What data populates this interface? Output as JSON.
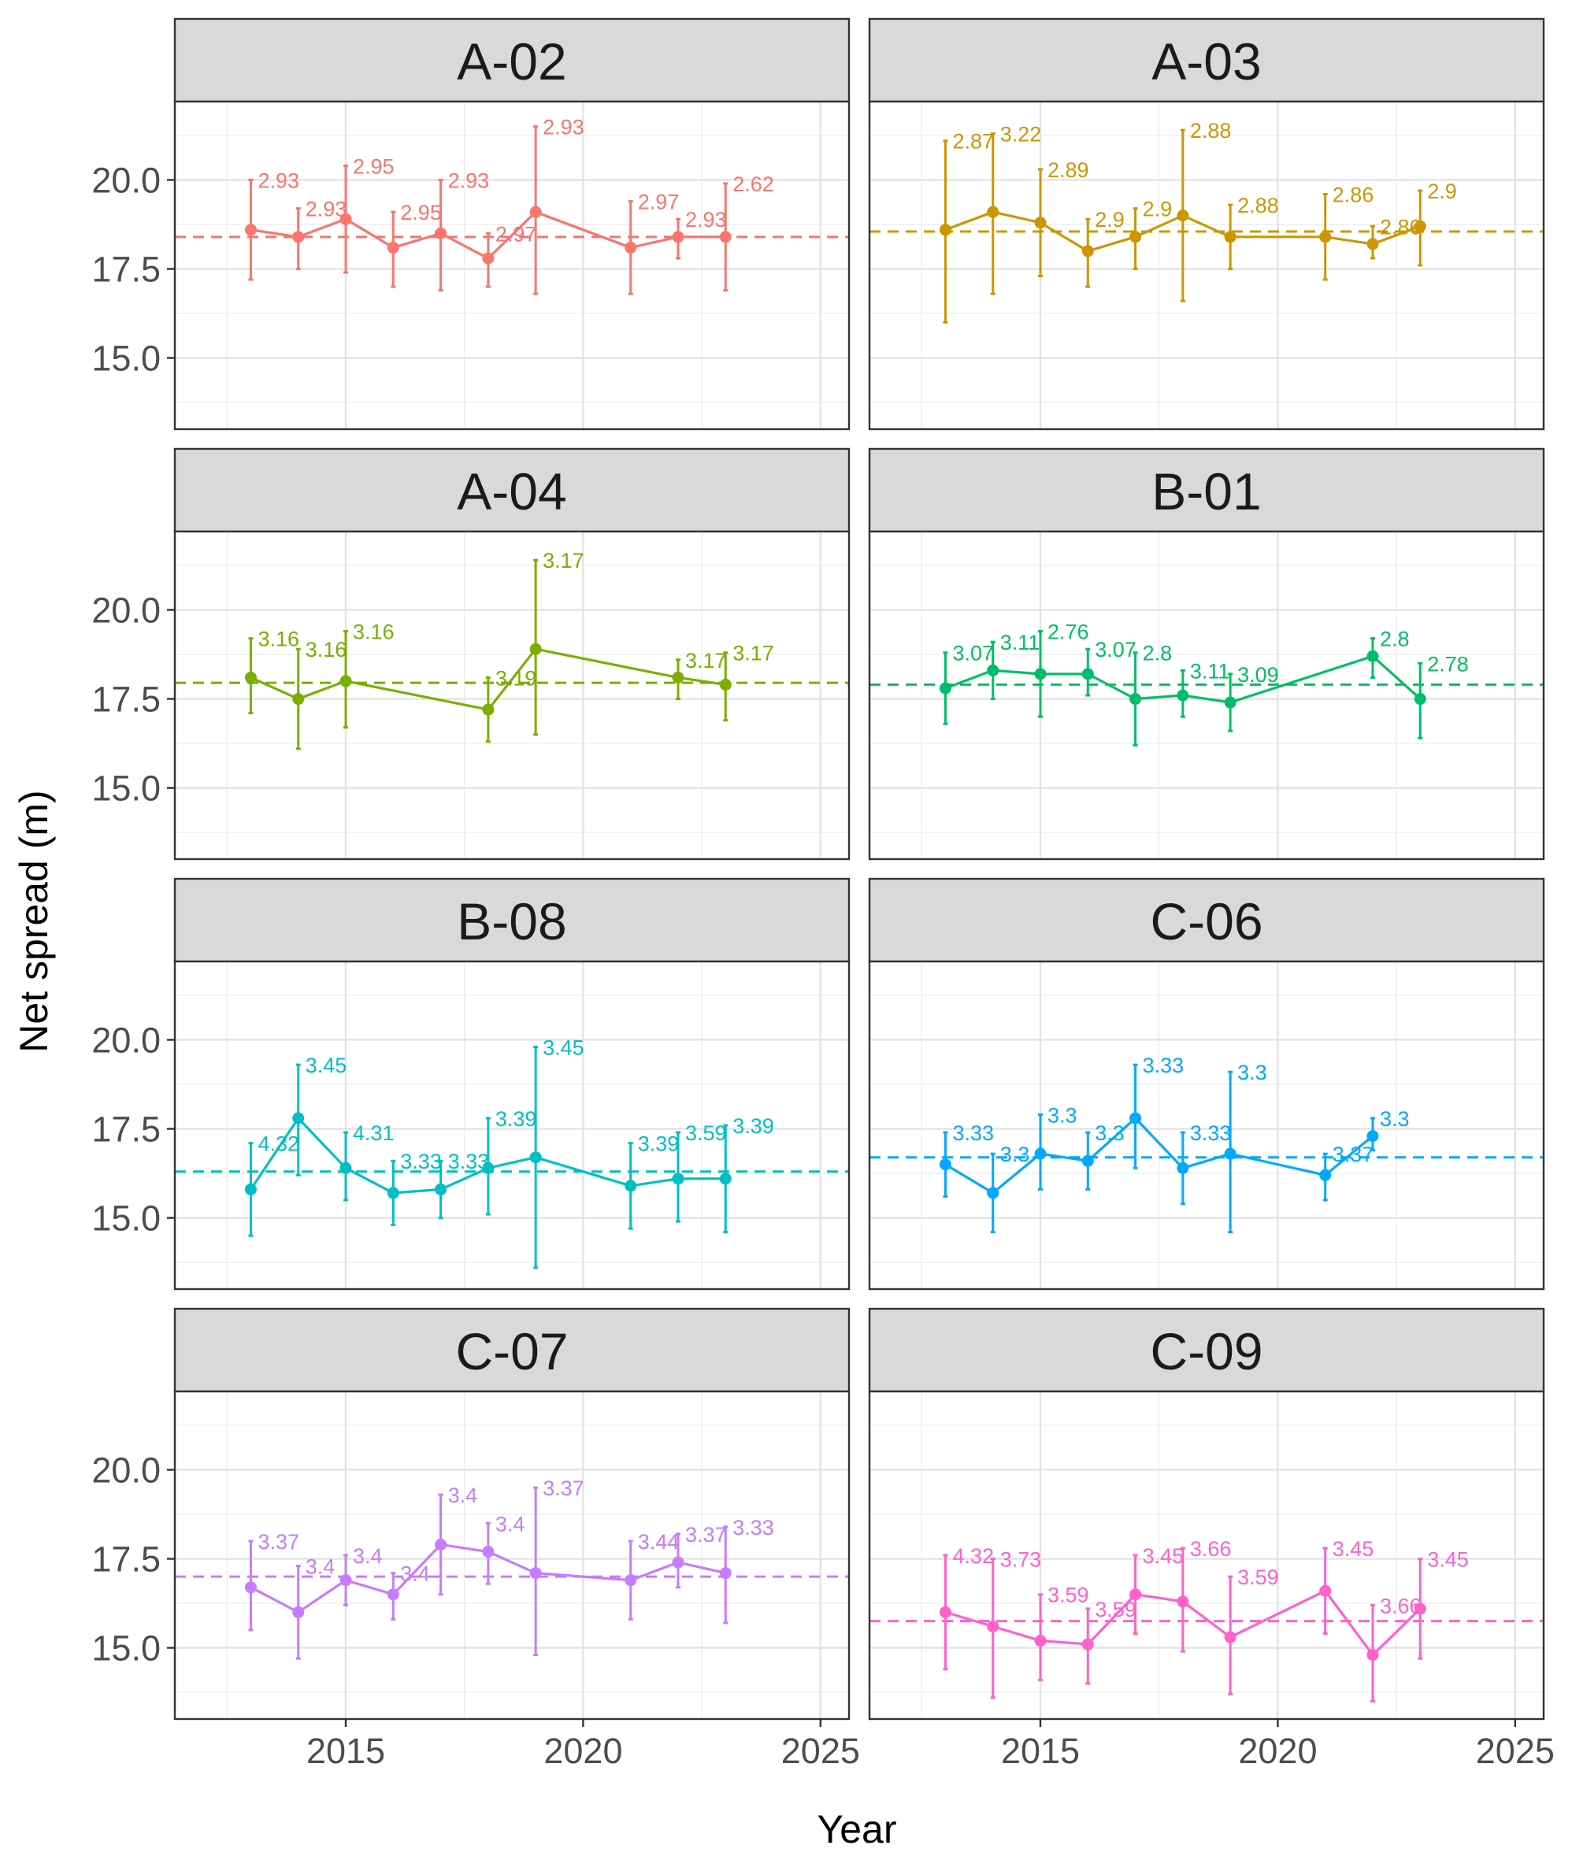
{
  "chart_data": {
    "type": "line",
    "xlabel": "Year",
    "ylabel": "Net spread (m)",
    "xlim": [
      2011.4,
      2025.6
    ],
    "ylim": [
      13.0,
      22.2
    ],
    "xticks": [
      2015,
      2020,
      2025
    ],
    "yticks": [
      15.0,
      17.5,
      20.0
    ],
    "ytick_labels": [
      "15.0",
      "17.5",
      "20.0"
    ],
    "grid": true,
    "legend": "none",
    "panels": [
      {
        "name": "A-02",
        "color": "#F8766D",
        "ref": 18.4,
        "points": [
          {
            "x": 2013,
            "y": 18.6,
            "lo": 17.2,
            "hi": 20.0,
            "label": "2.93"
          },
          {
            "x": 2014,
            "y": 18.4,
            "lo": 17.5,
            "hi": 19.2,
            "label": "2.93"
          },
          {
            "x": 2015,
            "y": 18.9,
            "lo": 17.4,
            "hi": 20.4,
            "label": "2.95"
          },
          {
            "x": 2016,
            "y": 18.1,
            "lo": 17.0,
            "hi": 19.1,
            "label": "2.95"
          },
          {
            "x": 2017,
            "y": 18.5,
            "lo": 16.9,
            "hi": 20.0,
            "label": "2.93"
          },
          {
            "x": 2018,
            "y": 17.8,
            "lo": 17.0,
            "hi": 18.5,
            "label": "2.97"
          },
          {
            "x": 2019,
            "y": 19.1,
            "lo": 16.8,
            "hi": 21.5,
            "label": "2.93"
          },
          {
            "x": 2021,
            "y": 18.1,
            "lo": 16.8,
            "hi": 19.4,
            "label": "2.97"
          },
          {
            "x": 2022,
            "y": 18.4,
            "lo": 17.8,
            "hi": 18.9,
            "label": "2.93"
          },
          {
            "x": 2023,
            "y": 18.4,
            "lo": 16.9,
            "hi": 19.9,
            "label": "2.62"
          }
        ]
      },
      {
        "name": "A-03",
        "color": "#CD9600",
        "ref": 18.55,
        "points": [
          {
            "x": 2013,
            "y": 18.6,
            "lo": 16.0,
            "hi": 21.1,
            "label": "2.87"
          },
          {
            "x": 2014,
            "y": 19.1,
            "lo": 16.8,
            "hi": 21.3,
            "label": "3.22"
          },
          {
            "x": 2015,
            "y": 18.8,
            "lo": 17.3,
            "hi": 20.3,
            "label": "2.89"
          },
          {
            "x": 2016,
            "y": 18.0,
            "lo": 17.0,
            "hi": 18.9,
            "label": "2.9"
          },
          {
            "x": 2017,
            "y": 18.4,
            "lo": 17.5,
            "hi": 19.2,
            "label": "2.9"
          },
          {
            "x": 2018,
            "y": 19.0,
            "lo": 16.6,
            "hi": 21.4,
            "label": "2.88"
          },
          {
            "x": 2019,
            "y": 18.4,
            "lo": 17.5,
            "hi": 19.3,
            "label": "2.88"
          },
          {
            "x": 2021,
            "y": 18.4,
            "lo": 17.2,
            "hi": 19.6,
            "label": "2.86"
          },
          {
            "x": 2022,
            "y": 18.2,
            "lo": 17.8,
            "hi": 18.7,
            "label": "2.86"
          },
          {
            "x": 2023,
            "y": 18.7,
            "lo": 17.6,
            "hi": 19.7,
            "label": "2.9"
          }
        ]
      },
      {
        "name": "A-04",
        "color": "#7CAE00",
        "ref": 17.95,
        "points": [
          {
            "x": 2013,
            "y": 18.1,
            "lo": 17.1,
            "hi": 19.2,
            "label": "3.16"
          },
          {
            "x": 2014,
            "y": 17.5,
            "lo": 16.1,
            "hi": 18.9,
            "label": "3.16"
          },
          {
            "x": 2015,
            "y": 18.0,
            "lo": 16.7,
            "hi": 19.4,
            "label": "3.16"
          },
          {
            "x": 2018,
            "y": 17.2,
            "lo": 16.3,
            "hi": 18.1,
            "label": "3.19"
          },
          {
            "x": 2019,
            "y": 18.9,
            "lo": 16.5,
            "hi": 21.4,
            "label": "3.17"
          },
          {
            "x": 2022,
            "y": 18.1,
            "lo": 17.5,
            "hi": 18.6,
            "label": "3.17"
          },
          {
            "x": 2023,
            "y": 17.9,
            "lo": 16.9,
            "hi": 18.8,
            "label": "3.17"
          }
        ]
      },
      {
        "name": "B-01",
        "color": "#00BE67",
        "ref": 17.9,
        "points": [
          {
            "x": 2013,
            "y": 17.8,
            "lo": 16.8,
            "hi": 18.8,
            "label": "3.07"
          },
          {
            "x": 2014,
            "y": 18.3,
            "lo": 17.5,
            "hi": 19.1,
            "label": "3.11"
          },
          {
            "x": 2015,
            "y": 18.2,
            "lo": 17.0,
            "hi": 19.4,
            "label": "2.76"
          },
          {
            "x": 2016,
            "y": 18.2,
            "lo": 17.6,
            "hi": 18.9,
            "label": "3.07"
          },
          {
            "x": 2017,
            "y": 17.5,
            "lo": 16.2,
            "hi": 18.8,
            "label": "2.8"
          },
          {
            "x": 2018,
            "y": 17.6,
            "lo": 17.0,
            "hi": 18.3,
            "label": "3.11"
          },
          {
            "x": 2019,
            "y": 17.4,
            "lo": 16.6,
            "hi": 18.2,
            "label": "3.09"
          },
          {
            "x": 2022,
            "y": 18.7,
            "lo": 18.1,
            "hi": 19.2,
            "label": "2.8"
          },
          {
            "x": 2023,
            "y": 17.5,
            "lo": 16.4,
            "hi": 18.5,
            "label": "2.78"
          }
        ]
      },
      {
        "name": "B-08",
        "color": "#00BFC4",
        "ref": 16.3,
        "points": [
          {
            "x": 2013,
            "y": 15.8,
            "lo": 14.5,
            "hi": 17.1,
            "label": "4.32"
          },
          {
            "x": 2014,
            "y": 17.8,
            "lo": 16.2,
            "hi": 19.3,
            "label": "3.45"
          },
          {
            "x": 2015,
            "y": 16.4,
            "lo": 15.5,
            "hi": 17.4,
            "label": "4.31"
          },
          {
            "x": 2016,
            "y": 15.7,
            "lo": 14.8,
            "hi": 16.6,
            "label": "3.33"
          },
          {
            "x": 2017,
            "y": 15.8,
            "lo": 15.0,
            "hi": 16.6,
            "label": "3.33"
          },
          {
            "x": 2018,
            "y": 16.4,
            "lo": 15.1,
            "hi": 17.8,
            "label": "3.39"
          },
          {
            "x": 2019,
            "y": 16.7,
            "lo": 13.6,
            "hi": 19.8,
            "label": "3.45"
          },
          {
            "x": 2021,
            "y": 15.9,
            "lo": 14.7,
            "hi": 17.1,
            "label": "3.39"
          },
          {
            "x": 2022,
            "y": 16.1,
            "lo": 14.9,
            "hi": 17.4,
            "label": "3.59"
          },
          {
            "x": 2023,
            "y": 16.1,
            "lo": 14.6,
            "hi": 17.6,
            "label": "3.39"
          }
        ]
      },
      {
        "name": "C-06",
        "color": "#00A9FF",
        "ref": 16.7,
        "points": [
          {
            "x": 2013,
            "y": 16.5,
            "lo": 15.6,
            "hi": 17.4,
            "label": "3.33"
          },
          {
            "x": 2014,
            "y": 15.7,
            "lo": 14.6,
            "hi": 16.8,
            "label": "3.3"
          },
          {
            "x": 2015,
            "y": 16.8,
            "lo": 15.8,
            "hi": 17.9,
            "label": "3.3"
          },
          {
            "x": 2016,
            "y": 16.6,
            "lo": 15.8,
            "hi": 17.4,
            "label": "3.3"
          },
          {
            "x": 2017,
            "y": 17.8,
            "lo": 16.4,
            "hi": 19.3,
            "label": "3.33"
          },
          {
            "x": 2018,
            "y": 16.4,
            "lo": 15.4,
            "hi": 17.4,
            "label": "3.33"
          },
          {
            "x": 2019,
            "y": 16.8,
            "lo": 14.6,
            "hi": 19.1,
            "label": "3.3"
          },
          {
            "x": 2021,
            "y": 16.2,
            "lo": 15.5,
            "hi": 16.8,
            "label": "3.37"
          },
          {
            "x": 2022,
            "y": 17.3,
            "lo": 16.9,
            "hi": 17.8,
            "label": "3.3"
          }
        ]
      },
      {
        "name": "C-07",
        "color": "#C77CFF",
        "ref": 17.0,
        "points": [
          {
            "x": 2013,
            "y": 16.7,
            "lo": 15.5,
            "hi": 18.0,
            "label": "3.37"
          },
          {
            "x": 2014,
            "y": 16.0,
            "lo": 14.7,
            "hi": 17.3,
            "label": "3.4"
          },
          {
            "x": 2015,
            "y": 16.9,
            "lo": 16.2,
            "hi": 17.6,
            "label": "3.4"
          },
          {
            "x": 2016,
            "y": 16.5,
            "lo": 15.8,
            "hi": 17.1,
            "label": "3.4"
          },
          {
            "x": 2017,
            "y": 17.9,
            "lo": 16.5,
            "hi": 19.3,
            "label": "3.4"
          },
          {
            "x": 2018,
            "y": 17.7,
            "lo": 16.8,
            "hi": 18.5,
            "label": "3.4"
          },
          {
            "x": 2019,
            "y": 17.1,
            "lo": 14.8,
            "hi": 19.5,
            "label": "3.37"
          },
          {
            "x": 2021,
            "y": 16.9,
            "lo": 15.8,
            "hi": 18.0,
            "label": "3.44"
          },
          {
            "x": 2022,
            "y": 17.4,
            "lo": 16.7,
            "hi": 18.2,
            "label": "3.37"
          },
          {
            "x": 2023,
            "y": 17.1,
            "lo": 15.7,
            "hi": 18.4,
            "label": "3.33"
          }
        ]
      },
      {
        "name": "C-09",
        "color": "#FF61CC",
        "ref": 15.75,
        "points": [
          {
            "x": 2013,
            "y": 16.0,
            "lo": 14.4,
            "hi": 17.6,
            "label": "4.32"
          },
          {
            "x": 2014,
            "y": 15.6,
            "lo": 13.6,
            "hi": 17.5,
            "label": "3.73"
          },
          {
            "x": 2015,
            "y": 15.2,
            "lo": 14.1,
            "hi": 16.5,
            "label": "3.59"
          },
          {
            "x": 2016,
            "y": 15.1,
            "lo": 14.0,
            "hi": 16.1,
            "label": "3.59"
          },
          {
            "x": 2017,
            "y": 16.5,
            "lo": 15.4,
            "hi": 17.6,
            "label": "3.45"
          },
          {
            "x": 2018,
            "y": 16.3,
            "lo": 14.9,
            "hi": 17.8,
            "label": "3.66"
          },
          {
            "x": 2019,
            "y": 15.3,
            "lo": 13.7,
            "hi": 17.0,
            "label": "3.59"
          },
          {
            "x": 2021,
            "y": 16.6,
            "lo": 15.4,
            "hi": 17.8,
            "label": "3.45"
          },
          {
            "x": 2022,
            "y": 14.8,
            "lo": 13.5,
            "hi": 16.2,
            "label": "3.66"
          },
          {
            "x": 2023,
            "y": 16.1,
            "lo": 14.7,
            "hi": 17.5,
            "label": "3.45"
          }
        ]
      }
    ]
  }
}
